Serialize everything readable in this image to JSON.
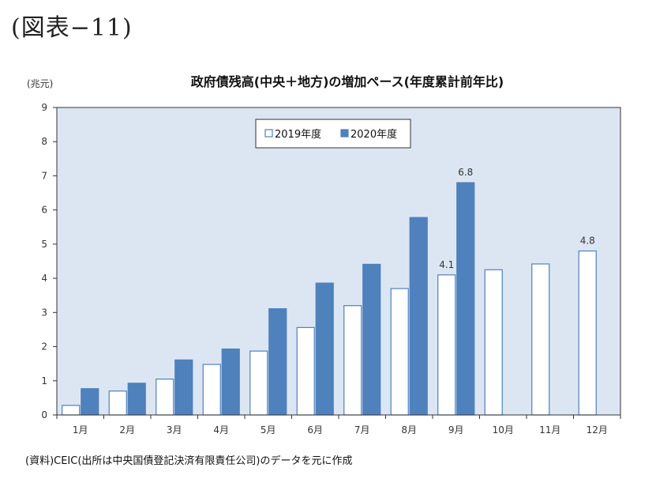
{
  "figure_label": "(図表−11)",
  "source_note": "(資料)CEIC(出所は中央国債登記決済有限責任公司)のデータを元に作成",
  "chart_data": {
    "type": "bar",
    "title": "政府債残高(中央＋地方)の増加ペース(年度累計前年比)",
    "ylabel": "(兆元)",
    "xlabel": "",
    "ylim": [
      0,
      9
    ],
    "yticks": [
      "0",
      "1",
      "2",
      "3",
      "4",
      "5",
      "6",
      "7",
      "8",
      "9"
    ],
    "categories": [
      "1月",
      "2月",
      "3月",
      "4月",
      "5月",
      "6月",
      "7月",
      "8月",
      "9月",
      "10月",
      "11月",
      "12月"
    ],
    "legend_position": "top-center",
    "grid": false,
    "series": [
      {
        "name": "2019年度",
        "color": "#ffffff",
        "stroke": "#4f81bd",
        "values": [
          0.28,
          0.7,
          1.05,
          1.48,
          1.87,
          2.56,
          3.2,
          3.7,
          4.1,
          4.25,
          4.42,
          4.8
        ]
      },
      {
        "name": "2020年度",
        "color": "#4f81bd",
        "stroke": "#4f81bd",
        "values": [
          0.77,
          0.93,
          1.61,
          1.93,
          3.11,
          3.86,
          4.41,
          5.78,
          6.8,
          null,
          null,
          null
        ]
      }
    ],
    "data_labels": [
      {
        "series": 0,
        "index": 8,
        "text": "4.1"
      },
      {
        "series": 1,
        "index": 8,
        "text": "6.8"
      },
      {
        "series": 0,
        "index": 11,
        "text": "4.8"
      }
    ],
    "plot_background": "#dce6f2"
  }
}
